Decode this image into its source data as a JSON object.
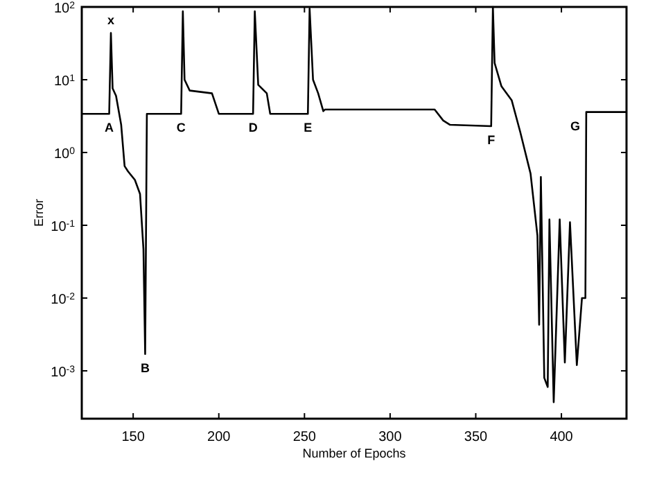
{
  "chart_data": {
    "type": "line",
    "xlabel": "Number of Epochs",
    "ylabel": "Error",
    "log": "y",
    "grid": false,
    "line_style": "solid",
    "xlim": [
      120,
      438
    ],
    "xticks": [
      150,
      200,
      250,
      300,
      350,
      400
    ],
    "ylim": [
      0.00022,
      100
    ],
    "yticks": [
      {
        "value": 100,
        "label": "10$^{2}$"
      },
      {
        "value": 10,
        "label": "10$^{1}$"
      },
      {
        "value": 1,
        "label": "10$^{0}$"
      },
      {
        "value": 0.1,
        "label": "10$^{-1}$"
      },
      {
        "value": 0.01,
        "label": "10$^{-2}$"
      },
      {
        "value": 0.001,
        "label": "10$^{-3}$"
      }
    ],
    "series": [
      {
        "color": "#000000",
        "x": [
          120,
          136,
          137,
          138,
          140,
          143,
          145,
          147,
          151,
          154,
          156,
          157,
          158,
          178,
          179,
          180,
          183,
          196,
          200,
          220,
          221,
          223,
          228,
          230,
          252,
          253,
          255,
          258,
          261,
          262,
          326,
          331,
          335,
          359,
          360,
          361,
          365,
          371,
          376,
          382,
          386,
          387,
          388,
          390,
          392,
          393,
          395.5,
          399,
          402,
          405,
          409,
          412,
          414,
          414.5,
          438
        ],
        "values": [
          3.4,
          3.4,
          44,
          7.6,
          6,
          2.4,
          0.65,
          0.55,
          0.42,
          0.27,
          0.047,
          0.0017,
          3.4,
          3.4,
          87,
          10,
          7.1,
          6.5,
          3.4,
          3.4,
          87,
          8.5,
          6.5,
          3.4,
          3.4,
          95,
          10,
          6.5,
          3.7,
          3.9,
          3.9,
          2.75,
          2.4,
          2.3,
          100,
          17,
          8.1,
          5.2,
          1.9,
          0.51,
          0.072,
          0.0043,
          0.46,
          0.0008,
          0.0006,
          0.12,
          0.00037,
          0.12,
          0.0013,
          0.11,
          0.0012,
          0.01,
          0.01,
          3.6,
          3.6
        ]
      }
    ],
    "annotations": [
      {
        "text": "x",
        "x": 137,
        "y": 44
      },
      {
        "text": "A",
        "x": 136,
        "y": 3.4
      },
      {
        "text": "B",
        "x": 157,
        "y": 0.0017
      },
      {
        "text": "C",
        "x": 178,
        "y": 3.4
      },
      {
        "text": "D",
        "x": 220,
        "y": 3.4
      },
      {
        "text": "E",
        "x": 252,
        "y": 3.4
      },
      {
        "text": "F",
        "x": 359,
        "y": 2.3
      },
      {
        "text": "G",
        "x": 414.5,
        "y": 3.6
      }
    ]
  }
}
